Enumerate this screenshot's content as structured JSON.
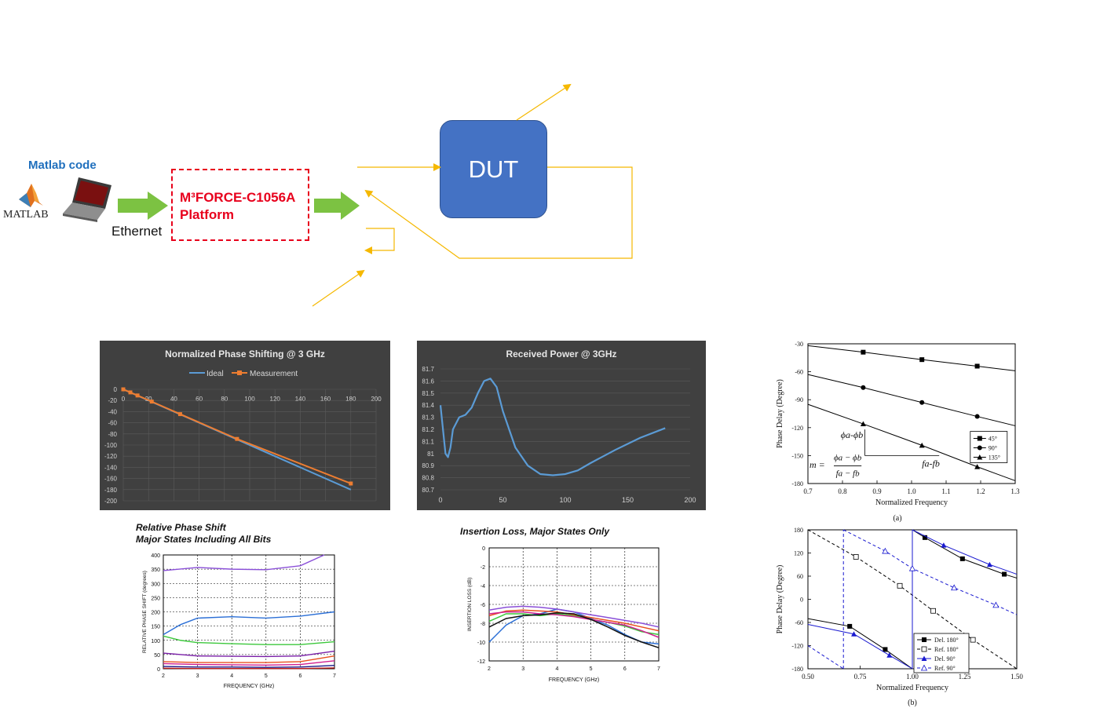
{
  "diagram": {
    "matlab_code_label": "Matlab code",
    "matlab_logo_text": "MATLAB",
    "ethernet_label": "Ethernet",
    "platform_line1": "M³FORCE-C1056A",
    "platform_line2": "Platform",
    "dut_label": "DUT",
    "colors": {
      "arrow": "#f5b800",
      "green_arrow": "#7cc242",
      "dut": "#4472c4",
      "platform_border": "#e8001c",
      "matlab_code": "#1f6fbd"
    }
  },
  "charts": {
    "phase_shift": {
      "type": "line",
      "title": "Normalized Phase Shifting @ 3 GHz",
      "series": [
        {
          "name": "Ideal",
          "color": "#5b9bd5",
          "x": [
            0,
            180
          ],
          "y": [
            0,
            -180
          ]
        },
        {
          "name": "Measurement",
          "color": "#ed7d31",
          "x": [
            0,
            5.6,
            11.25,
            22.5,
            45,
            90,
            180
          ],
          "y": [
            0,
            -5.5,
            -11,
            -22,
            -44.5,
            -89,
            -169
          ]
        }
      ],
      "xticks": [
        "0",
        "20",
        "40",
        "60",
        "80",
        "100",
        "120",
        "140",
        "160",
        "180",
        "200"
      ],
      "yticks": [
        "0",
        "-20",
        "-40",
        "-60",
        "-80",
        "-100",
        "-120",
        "-140",
        "-160",
        "-180",
        "-200"
      ],
      "xlim": [
        0,
        200
      ],
      "ylim": [
        -200,
        0
      ]
    },
    "received_power": {
      "type": "line",
      "title": "Received Power @ 3GHz",
      "series": [
        {
          "name": "",
          "color": "#5b9bd5",
          "x": [
            0,
            2,
            4,
            6,
            8,
            10,
            15,
            20,
            25,
            30,
            35,
            40,
            45,
            50,
            60,
            70,
            80,
            90,
            100,
            110,
            120,
            140,
            160,
            180
          ],
          "y": [
            81.4,
            81.2,
            81.0,
            80.97,
            81.05,
            81.2,
            81.3,
            81.32,
            81.38,
            81.5,
            81.6,
            81.62,
            81.55,
            81.35,
            81.05,
            80.9,
            80.83,
            80.82,
            80.83,
            80.86,
            80.92,
            81.03,
            81.13,
            81.21
          ]
        }
      ],
      "xticks": [
        "0",
        "50",
        "100",
        "150",
        "200"
      ],
      "yticks": [
        "81.7",
        "81.6",
        "81.5",
        "81.4",
        "81.3",
        "81.2",
        "81.1",
        "81",
        "80.9",
        "80.8",
        "80.7"
      ],
      "xlim": [
        0,
        200
      ],
      "ylim": [
        80.7,
        81.7
      ]
    },
    "relative_phase": {
      "type": "line",
      "title_line1": "Relative Phase Shift",
      "title_line2": "Major States Including All Bits",
      "xlabel": "FREQUENCY (GHz)",
      "ylabel": "RELATIVE PHASE SHIFT (degrees)",
      "xticks": [
        "2",
        "3",
        "4",
        "5",
        "6",
        "7"
      ],
      "yticks": [
        "0",
        "50",
        "100",
        "150",
        "200",
        "250",
        "300",
        "350",
        "400"
      ],
      "xlim": [
        2,
        7
      ],
      "ylim": [
        0,
        400
      ],
      "series": [
        {
          "name": "",
          "color": "#8a4fd8",
          "x": [
            2,
            3,
            4,
            5,
            6,
            6.7
          ],
          "y": [
            345,
            356,
            350,
            348,
            362,
            400
          ]
        },
        {
          "name": "",
          "color": "#2b6fd6",
          "x": [
            2,
            2.5,
            3,
            4,
            5,
            6,
            7
          ],
          "y": [
            120,
            155,
            178,
            183,
            178,
            185,
            200
          ]
        },
        {
          "name": "",
          "color": "#3cc83c",
          "x": [
            2,
            2.5,
            3,
            4,
            5,
            6,
            7
          ],
          "y": [
            115,
            100,
            92,
            88,
            85,
            85,
            95
          ]
        },
        {
          "name": "",
          "color": "#7a1fa8",
          "x": [
            2,
            3,
            4,
            5,
            6,
            7
          ],
          "y": [
            55,
            45,
            44,
            43,
            45,
            62
          ]
        },
        {
          "name": "",
          "color": "#e85020",
          "x": [
            2,
            3,
            4,
            5,
            6,
            7
          ],
          "y": [
            25,
            22,
            22,
            22,
            25,
            45
          ]
        },
        {
          "name": "",
          "color": "#d02090",
          "x": [
            2,
            3,
            4,
            5,
            6,
            7
          ],
          "y": [
            18,
            15,
            14,
            13,
            15,
            28
          ]
        },
        {
          "name": "",
          "color": "#1a1a8a",
          "x": [
            2,
            3,
            4,
            5,
            6,
            7
          ],
          "y": [
            8,
            6,
            6,
            5,
            6,
            12
          ]
        },
        {
          "name": "",
          "color": "#c02020",
          "x": [
            2,
            3,
            4,
            5,
            6,
            7
          ],
          "y": [
            2,
            1,
            1,
            1,
            1,
            3
          ]
        }
      ]
    },
    "insertion_loss": {
      "type": "line",
      "title": "Insertion Loss, Major States Only",
      "xlabel": "FREQUENCY (GHz)",
      "ylabel": "INSERTION LOSS  (dB)",
      "xticks": [
        "2",
        "3",
        "4",
        "5",
        "6",
        "7"
      ],
      "yticks": [
        "0",
        "-2",
        "-4",
        "-6",
        "-8",
        "-10",
        "-12"
      ],
      "xlim": [
        2,
        7
      ],
      "ylim": [
        -12,
        0
      ],
      "series": [
        {
          "name": "",
          "color": "#2b6fd6",
          "x": [
            2,
            2.5,
            3,
            3.5,
            4,
            4.5,
            5,
            5.5,
            6,
            6.5,
            7
          ],
          "y": [
            -10,
            -8.2,
            -7.2,
            -7.0,
            -6.5,
            -6.8,
            -7.5,
            -8.2,
            -9.2,
            -10.0,
            -10.2
          ]
        },
        {
          "name": "",
          "color": "#8a4fd8",
          "x": [
            2,
            2.5,
            3,
            3.5,
            4,
            4.5,
            5,
            5.5,
            6,
            6.5,
            7
          ],
          "y": [
            -6.6,
            -6.3,
            -6.2,
            -6.3,
            -6.5,
            -6.8,
            -7.1,
            -7.4,
            -7.7,
            -8.0,
            -8.4
          ]
        },
        {
          "name": "",
          "color": "#3cc83c",
          "x": [
            2,
            2.5,
            3,
            3.5,
            4,
            4.5,
            5,
            5.5,
            6,
            6.5,
            7
          ],
          "y": [
            -7.8,
            -7.0,
            -7.0,
            -7.2,
            -7.0,
            -7.2,
            -7.6,
            -7.9,
            -8.3,
            -8.9,
            -9.2
          ]
        },
        {
          "name": "",
          "color": "#e85020",
          "x": [
            2,
            2.5,
            3,
            3.5,
            4,
            4.5,
            5,
            5.5,
            6,
            6.5,
            7
          ],
          "y": [
            -7.2,
            -6.7,
            -6.6,
            -6.7,
            -6.8,
            -7.1,
            -7.4,
            -7.7,
            -8.0,
            -8.4,
            -8.8
          ]
        },
        {
          "name": "",
          "color": "#d02090",
          "x": [
            2,
            2.5,
            3,
            3.5,
            4,
            4.5,
            5,
            5.5,
            6,
            6.5,
            7
          ],
          "y": [
            -7.0,
            -6.8,
            -6.8,
            -7.0,
            -7.1,
            -7.3,
            -7.6,
            -7.9,
            -8.2,
            -8.8,
            -9.5
          ]
        },
        {
          "name": "",
          "color": "#111111",
          "x": [
            2,
            2.5,
            3,
            3.5,
            4,
            4.5,
            5,
            5.5,
            6,
            6.5,
            7
          ],
          "y": [
            -8.4,
            -7.5,
            -7.2,
            -7.1,
            -6.9,
            -7.0,
            -7.6,
            -8.4,
            -9.3,
            -10.0,
            -10.6
          ]
        }
      ]
    },
    "phase_delay_a": {
      "type": "line",
      "ylabel": "Phase Delay (Degree)",
      "xlabel": "Normalized Frequency",
      "caption": "(a)",
      "xticks": [
        "0.7",
        "0.8",
        "0.9",
        "1.0",
        "1.1",
        "1.2",
        "1.3"
      ],
      "yticks": [
        "-30",
        "-60",
        "-90",
        "-120",
        "-150",
        "-180"
      ],
      "xlim": [
        0.7,
        1.3
      ],
      "ylim": [
        -180,
        -30
      ],
      "series": [
        {
          "name": "45°",
          "marker": "square",
          "x": [
            0.7,
            0.86,
            1.03,
            1.19,
            1.3
          ],
          "y": [
            -32,
            -39,
            -47,
            -54,
            -59
          ]
        },
        {
          "name": "90°",
          "marker": "circle",
          "x": [
            0.7,
            0.86,
            1.03,
            1.19,
            1.3
          ],
          "y": [
            -63,
            -77,
            -93,
            -108,
            -118
          ]
        },
        {
          "name": "135°",
          "marker": "triangle",
          "x": [
            0.7,
            0.86,
            1.03,
            1.19,
            1.3
          ],
          "y": [
            -95,
            -116,
            -139,
            -162,
            -177
          ]
        }
      ],
      "annotations": {
        "slope_label": "ϕa-ϕb",
        "freq_label": "fa-fb",
        "formula_lhs": "m =",
        "formula_num": "ϕa − ϕb",
        "formula_den": "fa − fb"
      }
    },
    "phase_delay_b": {
      "type": "line",
      "ylabel": "Phase Delay (Degree)",
      "xlabel": "Normalized Frequency",
      "caption": "(b)",
      "xticks": [
        "0.50",
        "0.75",
        "1.00",
        "1.25",
        "1.50"
      ],
      "yticks": [
        "180",
        "120",
        "60",
        "0",
        "-60",
        "-120",
        "-180"
      ],
      "xlim": [
        0.5,
        1.5
      ],
      "ylim": [
        -180,
        180
      ],
      "series": [
        {
          "name": "Del. 180°",
          "color": "#000000",
          "dash": "",
          "marker": "filled-square",
          "segments": [
            [
              [
                0.5,
                -50
              ],
              [
                0.7,
                -70
              ],
              [
                0.87,
                -130
              ],
              [
                1.0,
                -180
              ]
            ],
            [
              [
                1.0,
                180
              ],
              [
                1.06,
                160
              ],
              [
                1.24,
                105
              ],
              [
                1.44,
                65
              ],
              [
                1.5,
                55
              ]
            ]
          ]
        },
        {
          "name": "Ref. 180°",
          "color": "#000000",
          "dash": "4,3",
          "marker": "open-square",
          "segments": [
            [
              [
                0.5,
                180
              ],
              [
                0.73,
                110
              ],
              [
                0.94,
                35
              ],
              [
                1.1,
                -30
              ],
              [
                1.29,
                -105
              ],
              [
                1.5,
                -180
              ]
            ]
          ]
        },
        {
          "name": "Del. 90°",
          "color": "#1a1ad0",
          "dash": "",
          "marker": "filled-triangle",
          "segments": [
            [
              [
                0.5,
                -65
              ],
              [
                0.72,
                -90
              ],
              [
                0.89,
                -145
              ],
              [
                1.0,
                -180
              ]
            ],
            [
              [
                1.0,
                180
              ],
              [
                1.15,
                140
              ],
              [
                1.37,
                90
              ],
              [
                1.5,
                65
              ]
            ]
          ]
        },
        {
          "name": "Ref. 90°",
          "color": "#1a1ad0",
          "dash": "4,3",
          "marker": "open-triangle",
          "segments": [
            [
              [
                0.5,
                -120
              ],
              [
                0.67,
                -180
              ]
            ],
            [
              [
                0.67,
                180
              ],
              [
                0.87,
                125
              ],
              [
                1.0,
                80
              ],
              [
                1.2,
                30
              ],
              [
                1.4,
                -15
              ],
              [
                1.5,
                -40
              ]
            ]
          ]
        }
      ]
    }
  }
}
